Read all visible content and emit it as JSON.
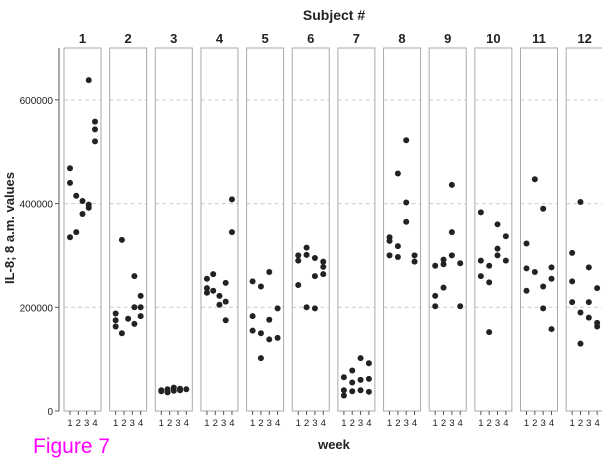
{
  "caption": "Figure 7",
  "colors": {
    "points": "#222222",
    "panel_border": "#aaaaaa",
    "grid": "#cccccc",
    "caption": "#ff00ff"
  },
  "chart_data": {
    "type": "scatter",
    "title": "Subject #",
    "xlabel": "week",
    "ylabel": "IL-8;  8 a.m. values",
    "ylim": [
      0,
      700000
    ],
    "yticks": [
      0,
      200000,
      400000,
      600000
    ],
    "ytick_labels": [
      "0",
      "200000",
      "400000",
      "600000"
    ],
    "grid": "horizontal dashed",
    "x_ticks": [
      "1",
      "2",
      "3",
      "4"
    ],
    "panels": [
      {
        "label": "1",
        "weeks": [
          [
            335000,
            440000,
            468000
          ],
          [
            345000,
            415000
          ],
          [
            380000,
            405000
          ],
          [
            392000,
            398000,
            638000
          ],
          [
            520000,
            543000,
            558000
          ]
        ]
      },
      {
        "label": "2",
        "weeks": [
          [
            163000,
            175000,
            188000
          ],
          [
            150000,
            330000
          ],
          [
            178000
          ],
          [
            168000,
            200000,
            260000
          ],
          [
            183000,
            200000,
            222000
          ]
        ]
      },
      {
        "label": "3",
        "weeks": [
          [
            38000,
            40000
          ],
          [
            36000,
            42000
          ],
          [
            39000,
            45000
          ],
          [
            40000,
            43000
          ],
          [
            42000
          ]
        ]
      },
      {
        "label": "4",
        "weeks": [
          [
            228000,
            237000,
            255000
          ],
          [
            232000,
            264000
          ],
          [
            205000,
            222000
          ],
          [
            175000,
            211000,
            247000
          ],
          [
            345000,
            408000
          ]
        ]
      },
      {
        "label": "5",
        "weeks": [
          [
            155000,
            183000,
            250000
          ],
          [
            102000,
            150000,
            240000
          ],
          [
            138000,
            176000,
            268000
          ],
          [
            141000,
            198000
          ]
        ]
      },
      {
        "label": "6",
        "weeks": [
          [
            243000,
            290000,
            300000
          ],
          [
            200000,
            301000,
            315000
          ],
          [
            198000,
            260000,
            295000
          ],
          [
            264000,
            278000,
            288000
          ]
        ]
      },
      {
        "label": "7",
        "weeks": [
          [
            30000,
            40000,
            65000
          ],
          [
            38000,
            55000,
            78000
          ],
          [
            40000,
            60000,
            102000
          ],
          [
            37000,
            62000,
            92000
          ]
        ]
      },
      {
        "label": "8",
        "weeks": [
          [
            300000,
            328000,
            335000
          ],
          [
            297000,
            318000,
            458000
          ],
          [
            365000,
            402000,
            522000
          ],
          [
            288000,
            300000
          ]
        ]
      },
      {
        "label": "9",
        "weeks": [
          [
            202000,
            222000,
            280000
          ],
          [
            238000,
            283000,
            292000
          ],
          [
            300000,
            345000,
            436000
          ],
          [
            202000,
            285000
          ]
        ]
      },
      {
        "label": "10",
        "weeks": [
          [
            260000,
            290000,
            383000
          ],
          [
            152000,
            248000,
            280000
          ],
          [
            300000,
            313000,
            360000
          ],
          [
            290000,
            337000
          ]
        ]
      },
      {
        "label": "11",
        "weeks": [
          [
            232000,
            275000,
            323000
          ],
          [
            268000,
            447000
          ],
          [
            198000,
            240000,
            390000
          ],
          [
            158000,
            255000,
            277000
          ]
        ]
      },
      {
        "label": "12",
        "weeks": [
          [
            210000,
            250000,
            305000
          ],
          [
            130000,
            190000,
            403000
          ],
          [
            180000,
            210000,
            277000
          ],
          [
            163000,
            170000,
            237000
          ]
        ]
      }
    ]
  }
}
